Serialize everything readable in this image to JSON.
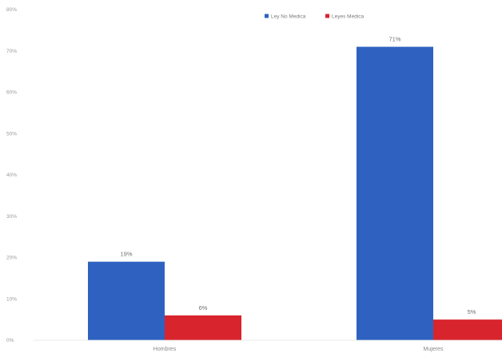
{
  "chart_data": {
    "type": "bar",
    "categories": [
      "Hombres",
      "Mujeres"
    ],
    "series": [
      {
        "name": "Ley No Medica",
        "color": "#2f62c0",
        "values": [
          19,
          71
        ],
        "labels": [
          "19%",
          "71%"
        ]
      },
      {
        "name": "Leyes Medica",
        "color": "#d8242c",
        "values": [
          6,
          5
        ],
        "labels": [
          "6%",
          "5%"
        ]
      }
    ],
    "yticks": [
      "0%",
      "10%",
      "20%",
      "30%",
      "40%",
      "50%",
      "60%",
      "70%",
      "80%"
    ],
    "ylim": [
      0,
      80
    ],
    "grid": false,
    "legend": "top-center"
  }
}
